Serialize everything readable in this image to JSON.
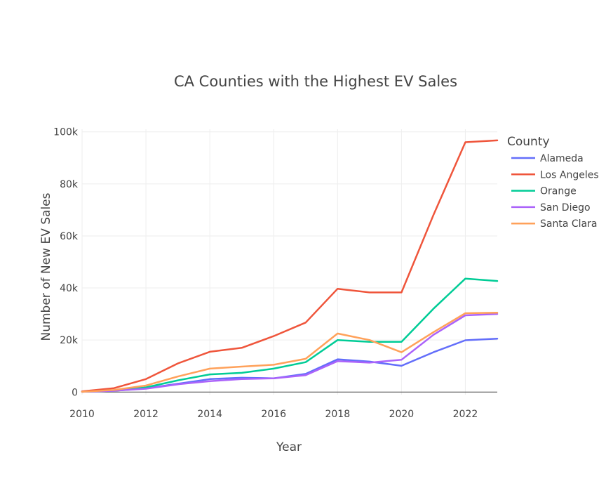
{
  "chart_data": {
    "type": "line",
    "title": "CA Counties with the Highest EV Sales",
    "xlabel": "Year",
    "ylabel": "Number of New EV Sales",
    "xlim": [
      2010,
      2023
    ],
    "ylim": [
      -1000,
      101000
    ],
    "x_ticks": [
      2010,
      2012,
      2014,
      2016,
      2018,
      2020,
      2022
    ],
    "y_ticks": [
      0,
      20000,
      40000,
      60000,
      80000,
      100000
    ],
    "y_tick_labels": [
      "0",
      "20k",
      "40k",
      "60k",
      "80k",
      "100k"
    ],
    "grid": true,
    "legend": {
      "title": "County",
      "placement": "right"
    },
    "x": [
      2010,
      2011,
      2012,
      2013,
      2014,
      2015,
      2016,
      2017,
      2018,
      2019,
      2020,
      2021,
      2022,
      2023
    ],
    "series": [
      {
        "name": "Alameda",
        "color": "#636efa",
        "values": [
          100,
          500,
          1400,
          3200,
          5000,
          5500,
          5300,
          7000,
          12600,
          11700,
          10100,
          15300,
          19900,
          20500
        ]
      },
      {
        "name": "Los Angeles",
        "color": "#ef553b",
        "values": [
          300,
          1500,
          5000,
          11000,
          15500,
          17000,
          21500,
          26700,
          39700,
          38300,
          38300,
          68000,
          96000,
          96700
        ]
      },
      {
        "name": "Orange",
        "color": "#00cc96",
        "values": [
          100,
          600,
          1800,
          4500,
          6800,
          7400,
          9000,
          11500,
          20000,
          19300,
          19300,
          32000,
          43600,
          42700
        ]
      },
      {
        "name": "San Diego",
        "color": "#ab63fa",
        "values": [
          100,
          500,
          1300,
          3000,
          4200,
          5000,
          5300,
          6500,
          11900,
          11300,
          12400,
          22000,
          29500,
          30000
        ]
      },
      {
        "name": "Santa Clara",
        "color": "#ffa15a",
        "values": [
          100,
          800,
          2500,
          6000,
          9000,
          9800,
          10500,
          12800,
          22500,
          20000,
          15300,
          23000,
          30300,
          30500
        ]
      }
    ]
  }
}
